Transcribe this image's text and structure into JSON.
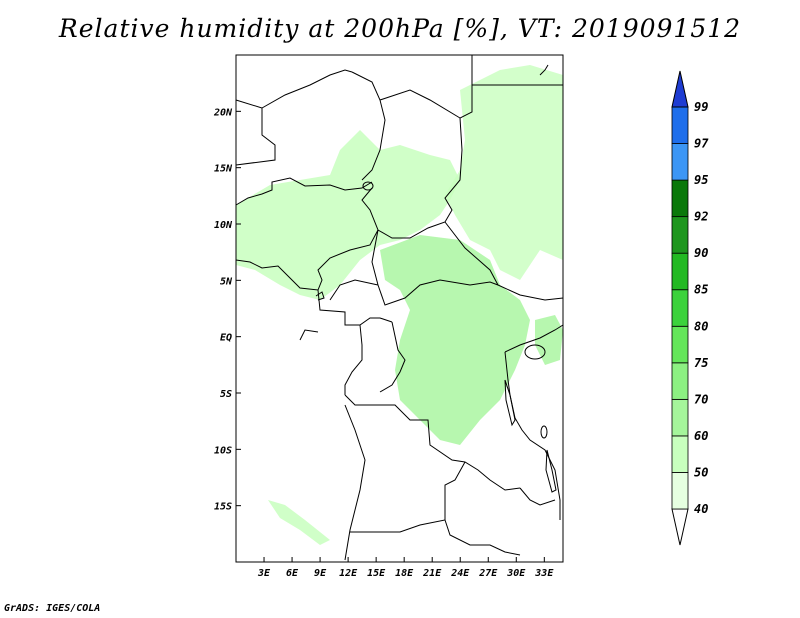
{
  "title": "Relative humidity at 200hPa [%], VT: 2019091512",
  "credit": "GrADS: IGES/COLA",
  "map": {
    "lon_range": [
      0,
      35
    ],
    "lat_range": [
      -20,
      25
    ],
    "lat_ticks": [
      {
        "value": 20,
        "label": "20N"
      },
      {
        "value": 15,
        "label": "15N"
      },
      {
        "value": 10,
        "label": "10N"
      },
      {
        "value": 5,
        "label": "5N"
      },
      {
        "value": 0,
        "label": "EQ"
      },
      {
        "value": -5,
        "label": "5S"
      },
      {
        "value": -10,
        "label": "10S"
      },
      {
        "value": -15,
        "label": "15S"
      }
    ],
    "lon_ticks": [
      {
        "value": 3,
        "label": "3E"
      },
      {
        "value": 6,
        "label": "6E"
      },
      {
        "value": 9,
        "label": "9E"
      },
      {
        "value": 12,
        "label": "12E"
      },
      {
        "value": 15,
        "label": "15E"
      },
      {
        "value": 18,
        "label": "18E"
      },
      {
        "value": 21,
        "label": "21E"
      },
      {
        "value": 24,
        "label": "24E"
      },
      {
        "value": 27,
        "label": "27E"
      },
      {
        "value": 30,
        "label": "30E"
      },
      {
        "value": 33,
        "label": "33E"
      }
    ]
  },
  "colorbar": {
    "levels": [
      "40",
      "50",
      "60",
      "70",
      "75",
      "80",
      "85",
      "90",
      "92",
      "95",
      "97",
      "99"
    ],
    "colors": [
      "#ffffff",
      "#e6ffe1",
      "#c8ffbe",
      "#a5f59b",
      "#8cf082",
      "#64e65a",
      "#3cd23c",
      "#23b923",
      "#1e961e",
      "#0a780a",
      "#3c96f5",
      "#1e6eeb",
      "#1e3cd2"
    ]
  },
  "colors": {
    "land_outline": "#000000",
    "humidity_light": "#c8ffbe",
    "humidity_mid": "#a5f59b"
  }
}
